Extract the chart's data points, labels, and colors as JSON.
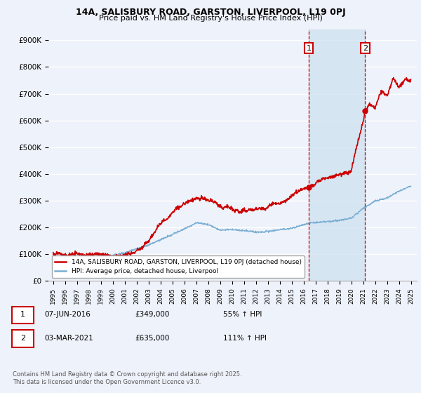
{
  "title1": "14A, SALISBURY ROAD, GARSTON, LIVERPOOL, L19 0PJ",
  "title2": "Price paid vs. HM Land Registry's House Price Index (HPI)",
  "ylabel_ticks": [
    "£0",
    "£100K",
    "£200K",
    "£300K",
    "£400K",
    "£500K",
    "£600K",
    "£700K",
    "£800K",
    "£900K"
  ],
  "ylabel_values": [
    0,
    100000,
    200000,
    300000,
    400000,
    500000,
    600000,
    700000,
    800000,
    900000
  ],
  "ylim": [
    0,
    940000
  ],
  "xlim_left": 1994.6,
  "xlim_right": 2025.5,
  "legend_label_red": "14A, SALISBURY ROAD, GARSTON, LIVERPOOL, L19 0PJ (detached house)",
  "legend_label_blue": "HPI: Average price, detached house, Liverpool",
  "annotation1_label": "1",
  "annotation1_date": "07-JUN-2016",
  "annotation1_price": "£349,000",
  "annotation1_hpi": "55% ↑ HPI",
  "annotation2_label": "2",
  "annotation2_date": "03-MAR-2021",
  "annotation2_price": "£635,000",
  "annotation2_hpi": "111% ↑ HPI",
  "vline1_x": 2016.44,
  "vline2_x": 2021.17,
  "marker1_red_y": 349000,
  "marker2_red_y": 635000,
  "red_color": "#cc0000",
  "blue_color": "#7bafd4",
  "vline_color": "#cc0000",
  "shade_color": "#cce0f0",
  "background_color": "#eef2fa",
  "grid_color": "#ffffff",
  "footer": "Contains HM Land Registry data © Crown copyright and database right 2025.\nThis data is licensed under the Open Government Licence v3.0."
}
